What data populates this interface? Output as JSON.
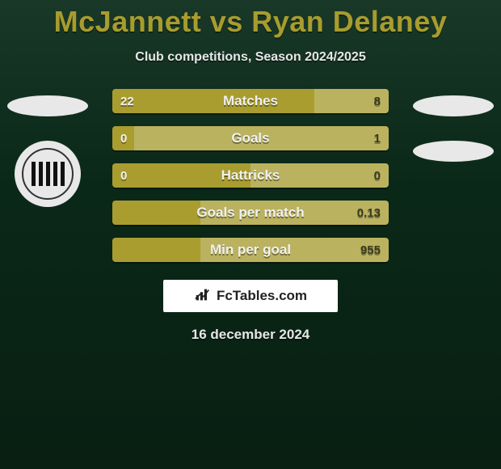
{
  "title": "McJannett vs Ryan Delaney",
  "subtitle": "Club competitions, Season 2024/2025",
  "date": "16 december 2024",
  "footer_brand": "FcTables.com",
  "colors": {
    "accent": "#a89c2e",
    "bar_primary": "#a99d30",
    "bar_secondary": "#bab25f",
    "value_light": "#f0f0f0",
    "value_dark": "#3a3a1e"
  },
  "rows": [
    {
      "label": "Matches",
      "left": "22",
      "right": "8",
      "left_pct": 73,
      "right_pct": 27
    },
    {
      "label": "Goals",
      "left": "0",
      "right": "1",
      "left_pct": 8,
      "right_pct": 92
    },
    {
      "label": "Hattricks",
      "left": "0",
      "right": "0",
      "left_pct": 50,
      "right_pct": 50
    },
    {
      "label": "Goals per match",
      "left": "",
      "right": "0.13",
      "left_pct": 32,
      "right_pct": 68
    },
    {
      "label": "Min per goal",
      "left": "",
      "right": "955",
      "left_pct": 32,
      "right_pct": 68
    }
  ]
}
